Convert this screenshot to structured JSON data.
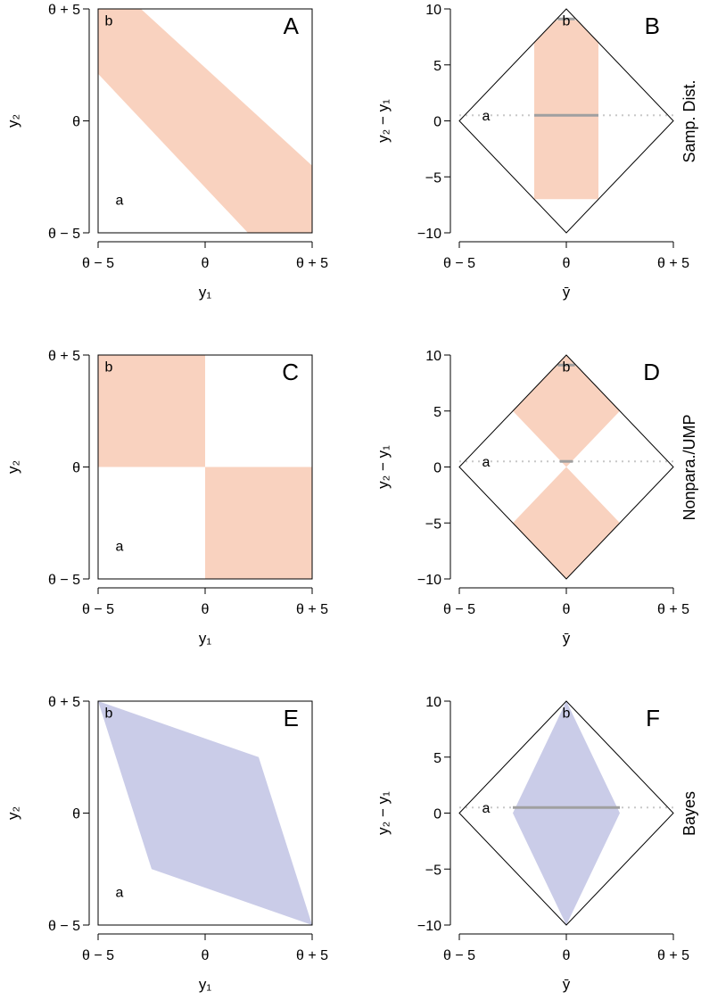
{
  "colors": {
    "orange_fill": "#f9d2bf",
    "blue_fill": "#cacce8",
    "gray_line": "#a0a0a0",
    "dot_line": "#c8c8c8"
  },
  "row_labels": [
    "Samp. Dist.",
    "Nonpara./UMP",
    "Bayes"
  ],
  "point_labels": {
    "a": "a",
    "b": "b"
  },
  "chart_data": [
    {
      "id": "A",
      "type": "area",
      "panel_label": "A",
      "xlabel": "y₁",
      "ylabel": "y₂",
      "xlim": [
        -5,
        5
      ],
      "ylim": [
        -5,
        5
      ],
      "x_ticks": [
        -5,
        0,
        5
      ],
      "x_tick_labels": [
        "θ − 5",
        "θ",
        "θ + 5"
      ],
      "y_ticks": [
        -5,
        0,
        5
      ],
      "y_tick_labels": [
        "θ − 5",
        "θ",
        "θ + 5"
      ],
      "regions": [
        {
          "fill": "orange",
          "points": [
            [
              -3,
              5
            ],
            [
              5,
              -2
            ],
            [
              5,
              -5
            ],
            [
              2,
              -5
            ],
            [
              -5,
              2.1
            ],
            [
              -5,
              5
            ]
          ]
        }
      ],
      "points": [
        {
          "label": "a",
          "x": -4,
          "y": -3.5
        },
        {
          "label": "b",
          "x": -4.5,
          "y": 4.5
        }
      ]
    },
    {
      "id": "B",
      "type": "area",
      "panel_label": "B",
      "xlabel": "ȳ",
      "ylabel": "y₂ − y₁",
      "xlim": [
        -5,
        5
      ],
      "ylim": [
        -10,
        10
      ],
      "x_ticks": [
        -5,
        0,
        5
      ],
      "x_tick_labels": [
        "θ − 5",
        "θ",
        "θ + 5"
      ],
      "y_ticks": [
        -10,
        -5,
        0,
        5,
        10
      ],
      "y_tick_labels": [
        "−10",
        "−5",
        "0",
        "5",
        "10"
      ],
      "diamond": true,
      "regions": [
        {
          "fill": "orange",
          "points": [
            [
              -1.5,
              7
            ],
            [
              -0.5,
              9
            ],
            [
              0.5,
              9
            ],
            [
              1.5,
              7
            ],
            [
              1.5,
              -7
            ],
            [
              -1.5,
              -7
            ]
          ]
        }
      ],
      "dotted_line_y": 0.5,
      "gray_segments": [
        {
          "x1": -1.5,
          "x2": 1.5,
          "y": 0.5
        },
        {
          "x1": -0.4,
          "x2": 0.4,
          "y": 9.1
        }
      ],
      "points": [
        {
          "label": "a",
          "x": -3.75,
          "y": 0.5
        },
        {
          "label": "b",
          "x": 0,
          "y": 9
        }
      ]
    },
    {
      "id": "C",
      "type": "area",
      "panel_label": "C",
      "xlabel": "y₁",
      "ylabel": "y₂",
      "xlim": [
        -5,
        5
      ],
      "ylim": [
        -5,
        5
      ],
      "x_ticks": [
        -5,
        0,
        5
      ],
      "x_tick_labels": [
        "θ − 5",
        "θ",
        "θ + 5"
      ],
      "y_ticks": [
        -5,
        0,
        5
      ],
      "y_tick_labels": [
        "θ − 5",
        "θ",
        "θ + 5"
      ],
      "regions": [
        {
          "fill": "orange",
          "points": [
            [
              -5,
              0
            ],
            [
              0,
              0
            ],
            [
              0,
              5
            ],
            [
              -5,
              5
            ]
          ]
        },
        {
          "fill": "orange",
          "points": [
            [
              0,
              -5
            ],
            [
              5,
              -5
            ],
            [
              5,
              0
            ],
            [
              0,
              0
            ]
          ]
        }
      ],
      "points": [
        {
          "label": "a",
          "x": -4,
          "y": -3.5
        },
        {
          "label": "b",
          "x": -4.5,
          "y": 4.5
        }
      ]
    },
    {
      "id": "D",
      "type": "area",
      "panel_label": "D",
      "xlabel": "ȳ",
      "ylabel": "y₂ − y₁",
      "xlim": [
        -5,
        5
      ],
      "ylim": [
        -10,
        10
      ],
      "x_ticks": [
        -5,
        0,
        5
      ],
      "x_tick_labels": [
        "θ − 5",
        "θ",
        "θ + 5"
      ],
      "y_ticks": [
        -10,
        -5,
        0,
        5,
        10
      ],
      "y_tick_labels": [
        "−10",
        "−5",
        "0",
        "5",
        "10"
      ],
      "diamond": true,
      "regions": [
        {
          "fill": "orange",
          "points": [
            [
              0,
              10
            ],
            [
              2.5,
              5
            ],
            [
              0,
              0
            ],
            [
              -2.5,
              5
            ]
          ]
        },
        {
          "fill": "orange",
          "points": [
            [
              0,
              0
            ],
            [
              2.5,
              -5
            ],
            [
              0,
              -10
            ],
            [
              -2.5,
              -5
            ]
          ]
        }
      ],
      "dotted_line_y": 0.5,
      "gray_segments": [
        {
          "x1": -0.3,
          "x2": 0.3,
          "y": 0.5
        },
        {
          "x1": -0.4,
          "x2": 0.4,
          "y": 9.1
        }
      ],
      "points": [
        {
          "label": "a",
          "x": -3.75,
          "y": 0.5
        },
        {
          "label": "b",
          "x": 0,
          "y": 9
        }
      ]
    },
    {
      "id": "E",
      "type": "area",
      "panel_label": "E",
      "xlabel": "y₁",
      "ylabel": "y₂",
      "xlim": [
        -5,
        5
      ],
      "ylim": [
        -5,
        5
      ],
      "x_ticks": [
        -5,
        0,
        5
      ],
      "x_tick_labels": [
        "θ − 5",
        "θ",
        "θ + 5"
      ],
      "y_ticks": [
        -5,
        0,
        5
      ],
      "y_tick_labels": [
        "θ − 5",
        "θ",
        "θ + 5"
      ],
      "regions": [
        {
          "fill": "blue",
          "points": [
            [
              -5,
              5
            ],
            [
              2.5,
              2.5
            ],
            [
              5,
              -5
            ],
            [
              -2.5,
              -2.5
            ]
          ]
        }
      ],
      "points": [
        {
          "label": "a",
          "x": -4,
          "y": -3.5
        },
        {
          "label": "b",
          "x": -4.5,
          "y": 4.5
        }
      ]
    },
    {
      "id": "F",
      "type": "area",
      "panel_label": "F",
      "xlabel": "ȳ",
      "ylabel": "y₂ − y₁",
      "xlim": [
        -5,
        5
      ],
      "ylim": [
        -10,
        10
      ],
      "x_ticks": [
        -5,
        0,
        5
      ],
      "x_tick_labels": [
        "θ − 5",
        "θ",
        "θ + 5"
      ],
      "y_ticks": [
        -10,
        -5,
        0,
        5,
        10
      ],
      "y_tick_labels": [
        "−10",
        "−5",
        "0",
        "5",
        "10"
      ],
      "diamond": true,
      "regions": [
        {
          "fill": "blue",
          "points": [
            [
              0,
              10
            ],
            [
              2.5,
              0
            ],
            [
              0,
              -10
            ],
            [
              -2.5,
              0
            ]
          ]
        }
      ],
      "dotted_line_y": 0.5,
      "gray_segments": [
        {
          "x1": -2.5,
          "x2": 2.5,
          "y": 0.5
        }
      ],
      "points": [
        {
          "label": "a",
          "x": -3.75,
          "y": 0.5
        },
        {
          "label": "b",
          "x": 0,
          "y": 9
        }
      ]
    }
  ]
}
